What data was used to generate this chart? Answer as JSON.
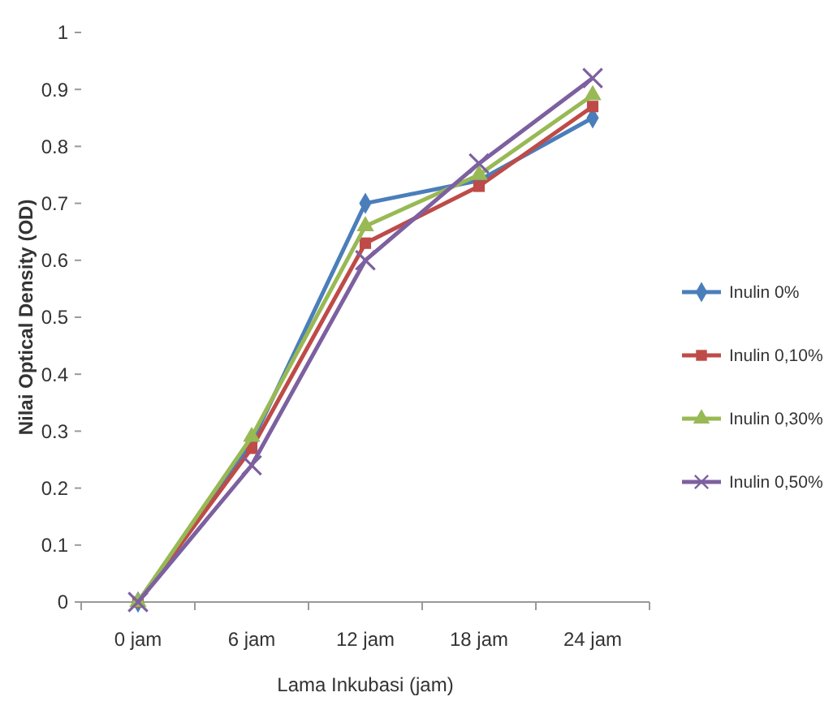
{
  "chart_data": {
    "type": "line",
    "xlabel": "Lama Inkubasi (jam)",
    "ylabel": "Nilai Optical Density (OD)",
    "categories": [
      "0 jam",
      "6 jam",
      "12 jam",
      "18 jam",
      "24 jam"
    ],
    "ylim": [
      0,
      1
    ],
    "yticks": [
      0,
      0.1,
      0.2,
      0.3,
      0.4,
      0.5,
      0.6,
      0.7,
      0.8,
      0.9,
      1
    ],
    "grid": false,
    "legend": "right",
    "series": [
      {
        "name": "Inulin 0%",
        "color": "#4a7ebb",
        "marker": "diamond",
        "values": [
          0,
          0.28,
          0.7,
          0.74,
          0.85
        ]
      },
      {
        "name": "Inulin 0,10%",
        "color": "#be4b48",
        "marker": "square",
        "values": [
          0,
          0.27,
          0.63,
          0.73,
          0.87
        ]
      },
      {
        "name": "Inulin 0,30%",
        "color": "#98b954",
        "marker": "triangle",
        "values": [
          0,
          0.29,
          0.66,
          0.75,
          0.89
        ]
      },
      {
        "name": "Inulin 0,50%",
        "color": "#7d60a0",
        "marker": "cross",
        "values": [
          0,
          0.24,
          0.6,
          0.77,
          0.92
        ]
      }
    ]
  }
}
